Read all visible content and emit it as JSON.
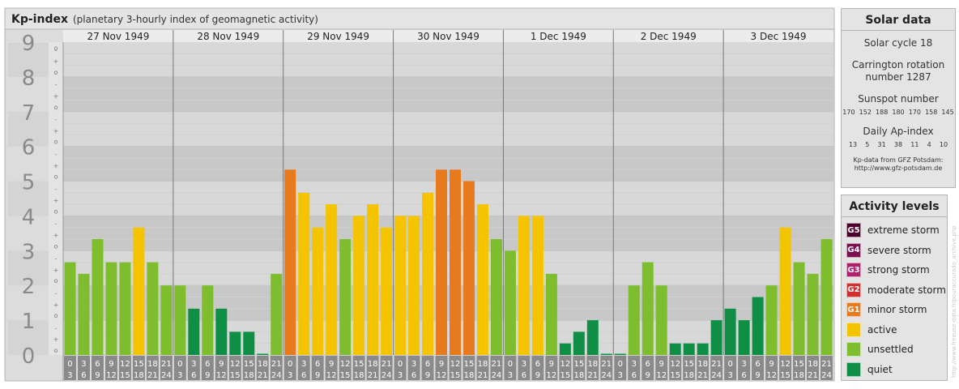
{
  "header": {
    "title": "Kp-index",
    "subtitle": "(planetary 3-hourly index of geomagnetic activity)"
  },
  "chart_data": {
    "type": "bar",
    "title": "Kp-index",
    "ylim": [
      0,
      9
    ],
    "y_ticks": [
      "0",
      "1",
      "2",
      "3",
      "4",
      "5",
      "6",
      "7",
      "8",
      "9"
    ],
    "subticks": [
      "o",
      "+",
      "-"
    ],
    "days": [
      "27 Nov 1949",
      "28 Nov 1949",
      "29 Nov 1949",
      "30 Nov 1949",
      "1 Dec 1949",
      "2 Dec 1949",
      "3 Dec 1949"
    ],
    "interval_start": [
      "0",
      "3",
      "6",
      "9",
      "12",
      "15",
      "18",
      "21"
    ],
    "interval_end": [
      "3",
      "6",
      "9",
      "12",
      "15",
      "18",
      "21",
      "24"
    ],
    "values": [
      2.667,
      2.333,
      3.333,
      2.667,
      2.667,
      3.667,
      2.667,
      2.0,
      2.0,
      1.333,
      2.0,
      1.333,
      0.667,
      0.667,
      0.0,
      2.333,
      5.333,
      4.667,
      3.667,
      4.333,
      3.333,
      4.0,
      4.333,
      3.667,
      4.0,
      4.0,
      4.667,
      5.333,
      5.333,
      5.0,
      4.333,
      3.333,
      3.0,
      4.0,
      4.0,
      2.333,
      0.333,
      0.667,
      1.0,
      0.0,
      0.0,
      2.0,
      2.667,
      2.0,
      0.333,
      0.333,
      0.333,
      1.0,
      1.333,
      1.0,
      1.667,
      2.0,
      3.667,
      2.667,
      2.333,
      3.333
    ]
  },
  "colors": {
    "extreme": "#4a0028",
    "severe": "#7a1050",
    "strong": "#b0206a",
    "moderate": "#cf2f2f",
    "minor": "#e87a1e",
    "active": "#f5c400",
    "unsettled": "#7dbd2e",
    "quiet": "#0f8f45"
  },
  "solar": {
    "title": "Solar data",
    "cycle": "Solar cycle 18",
    "carrington_line1": "Carrington rotation",
    "carrington_line2": "number 1287",
    "sunspot_label": "Sunspot number",
    "sunspot_values": "170  152  188  180  170  158  145",
    "ap_label": "Daily Ap-index",
    "ap_values": "13    5    31    38    11    4    10",
    "source_line1": "Kp-data from GFZ Potsdam:",
    "source_line2": "http://www.gfz-potsdam.de"
  },
  "levels": {
    "title": "Activity levels",
    "items": [
      {
        "code": "G5",
        "label": "extreme storm",
        "color": "#4a0028"
      },
      {
        "code": "G4",
        "label": "severe storm",
        "color": "#7a1050"
      },
      {
        "code": "G3",
        "label": "strong storm",
        "color": "#b0206a"
      },
      {
        "code": "G2",
        "label": "moderate storm",
        "color": "#cf2f2f"
      },
      {
        "code": "G1",
        "label": "minor storm",
        "color": "#e87a1e"
      },
      {
        "code": "",
        "label": "active",
        "color": "#f5c400"
      },
      {
        "code": "",
        "label": "unsettled",
        "color": "#7dbd2e"
      },
      {
        "code": "",
        "label": "quiet",
        "color": "#0f8f45"
      }
    ]
  },
  "watermark": "http://www.freeuse-data.fr/pouraccurado_archive.php"
}
